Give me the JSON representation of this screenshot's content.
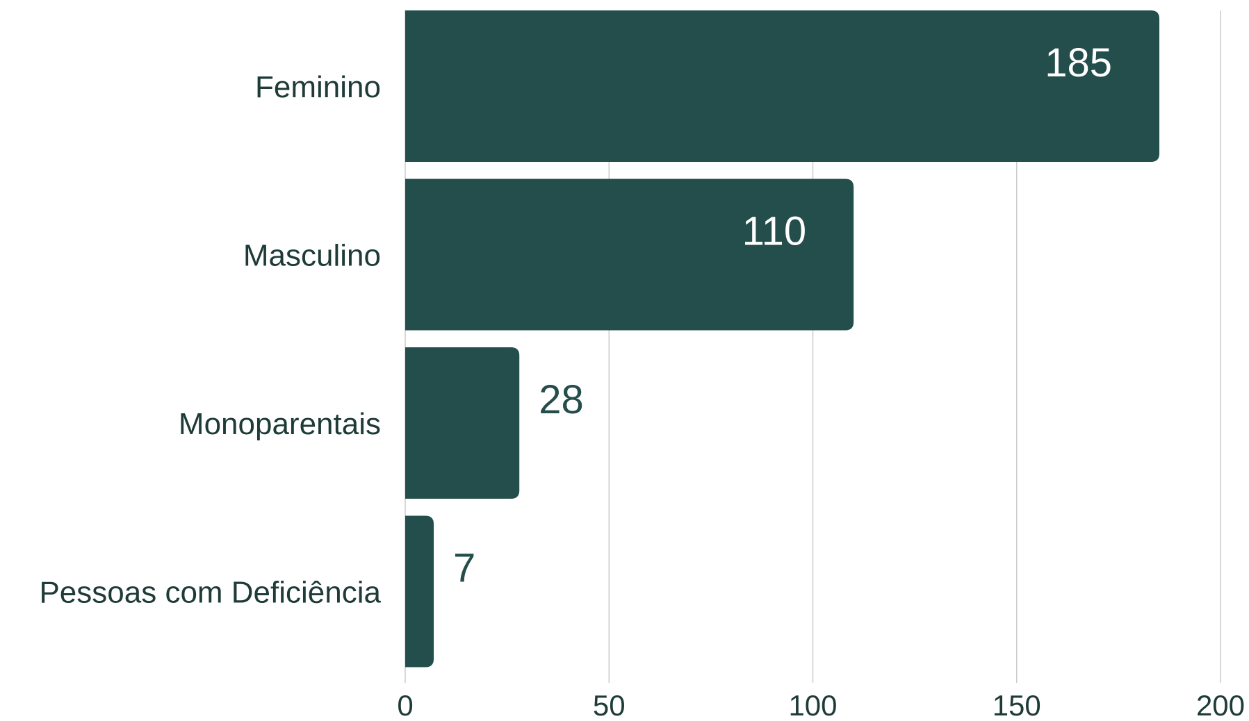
{
  "chart_data": {
    "type": "bar",
    "orientation": "horizontal",
    "categories": [
      "Feminino",
      "Masculino",
      "Monoparentais",
      "Pessoas com Deficiência"
    ],
    "values": [
      185,
      110,
      28,
      7
    ],
    "data_labels": [
      "185",
      "110",
      "28",
      "7"
    ],
    "xlim": [
      0,
      200
    ],
    "x_ticks": [
      0,
      50,
      100,
      150,
      200
    ],
    "x_tick_labels": [
      "0",
      "50",
      "100",
      "150",
      "200"
    ],
    "title": "",
    "xlabel": "",
    "ylabel": "",
    "grid": "vertical",
    "legend": "none",
    "bar_color": "#234e4b",
    "label_inside_color": "#ffffff",
    "label_outside_color": "#234e4b",
    "grid_color": "#cccccc"
  }
}
